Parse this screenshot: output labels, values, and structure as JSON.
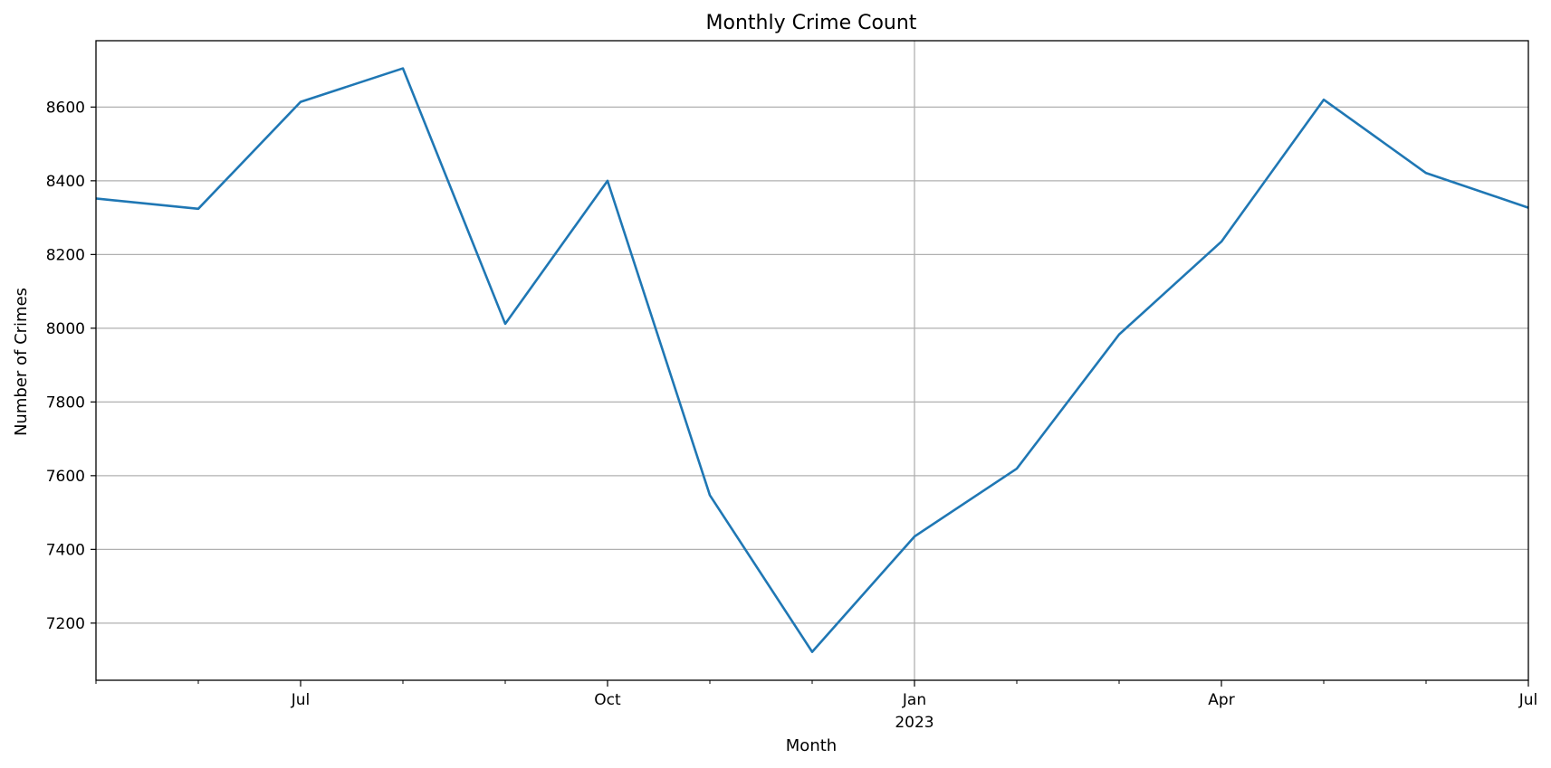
{
  "chart_data": {
    "type": "line",
    "title": "Monthly Crime Count",
    "xlabel": "Month",
    "ylabel": "Number of Crimes",
    "x": [
      "2022-05",
      "2022-06",
      "2022-07",
      "2022-08",
      "2022-09",
      "2022-10",
      "2022-11",
      "2022-12",
      "2023-01",
      "2023-02",
      "2023-03",
      "2023-04",
      "2023-05",
      "2023-06",
      "2023-07"
    ],
    "series": [
      {
        "values": [
          8352,
          8324,
          8614,
          8705,
          8012,
          8400,
          7547,
          7122,
          7435,
          7619,
          7983,
          8235,
          8620,
          8421,
          8327
        ]
      }
    ],
    "ylim": [
      7045,
      8780
    ],
    "yticks": [
      7200,
      7400,
      7600,
      7800,
      8000,
      8200,
      8400,
      8600
    ],
    "xticks_major": [
      {
        "x": "2022-07",
        "label": "Jul",
        "sublabel": ""
      },
      {
        "x": "2022-10",
        "label": "Oct",
        "sublabel": ""
      },
      {
        "x": "2023-01",
        "label": "Jan",
        "sublabel": "2023"
      },
      {
        "x": "2023-04",
        "label": "Apr",
        "sublabel": ""
      },
      {
        "x": "2023-07",
        "label": "Jul",
        "sublabel": ""
      }
    ],
    "grid": {
      "y": true,
      "x_at": [
        "2023-01"
      ]
    },
    "colors": {
      "line": "#1f77b4",
      "grid": "#b0b0b0",
      "axes": "#000000"
    }
  }
}
